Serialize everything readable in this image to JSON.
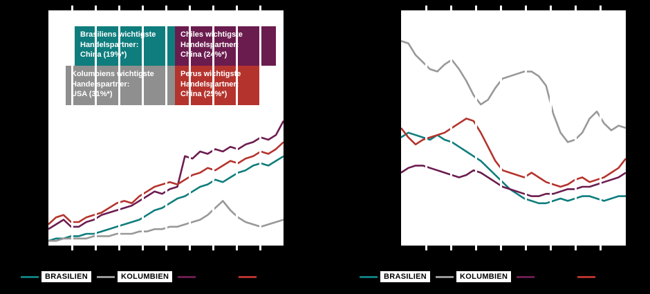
{
  "page": {
    "background": "#000000"
  },
  "colors": {
    "teal": "#0f7d7d",
    "gray": "#989898",
    "purple": "#6b1c4f",
    "red": "#b5332d",
    "plot_background": "#ffffff",
    "gridline": "#ffffff",
    "annotation_gray": "#8f8f8f",
    "legend_chip_bg": "#ffffff",
    "legend_text": "#000000"
  },
  "annotations": [
    {
      "key": "brasilien",
      "color": "teal",
      "text": "Brasiliens wichtigste\nHandelspartner:\nChina (19%*)"
    },
    {
      "key": "chile",
      "color": "purple",
      "text": "Chiles wichtigste\nHandelspartner:\nChina (24%*)"
    },
    {
      "key": "kolumbien",
      "color": "gray",
      "text": "Kolumbiens wichtigste\nHandelspartner:\nUSA (31%*)"
    },
    {
      "key": "peru",
      "color": "red",
      "text": "Perus wichtigste\nHandelspartner:\nChina (25%*)"
    }
  ],
  "legend": {
    "items": [
      {
        "label": "BRASILIEN",
        "color": "teal"
      },
      {
        "label": "KOLUMBIEN",
        "color": "gray"
      },
      {
        "label": "",
        "color": "purple"
      },
      {
        "label": "",
        "color": "red"
      }
    ]
  },
  "chart_data": [
    {
      "id": "left",
      "type": "line",
      "grid": {
        "vertical_lines": 9,
        "horizontal_lines": 0
      },
      "axes_note": "No axis tick labels visible in screenshot; values estimated as percent of plot height (0 = bottom, 100 = top).",
      "legend_position": "bottom",
      "x": [
        0,
        1,
        2,
        3,
        4,
        5,
        6,
        7,
        8,
        9,
        10,
        11,
        12,
        13,
        14,
        15,
        16,
        17,
        18,
        19,
        20,
        21,
        22,
        23,
        24,
        25,
        26,
        27,
        28,
        29,
        30,
        31
      ],
      "series": [
        {
          "name": "Brasilien",
          "color": "teal",
          "values": [
            2,
            3,
            3,
            4,
            4,
            5,
            5,
            6,
            7,
            8,
            9,
            10,
            11,
            13,
            15,
            16,
            18,
            20,
            21,
            23,
            25,
            26,
            28,
            27,
            29,
            31,
            32,
            34,
            35,
            34,
            36,
            38
          ]
        },
        {
          "name": "Kolumbien",
          "color": "gray",
          "values": [
            2,
            2,
            3,
            3,
            3,
            3,
            4,
            4,
            4,
            5,
            5,
            5,
            6,
            6,
            7,
            7,
            8,
            8,
            9,
            10,
            11,
            13,
            16,
            19,
            15,
            12,
            10,
            9,
            8,
            9,
            10,
            11
          ]
        },
        {
          "name": "Chile",
          "color": "purple",
          "values": [
            7,
            9,
            11,
            8,
            8,
            10,
            11,
            13,
            14,
            15,
            16,
            17,
            19,
            21,
            23,
            22,
            24,
            25,
            38,
            37,
            40,
            39,
            41,
            40,
            42,
            41,
            43,
            44,
            46,
            45,
            47,
            53
          ]
        },
        {
          "name": "Peru",
          "color": "red",
          "values": [
            9,
            12,
            13,
            10,
            10,
            12,
            13,
            14,
            16,
            18,
            19,
            18,
            21,
            23,
            25,
            26,
            27,
            26,
            28,
            30,
            31,
            33,
            32,
            34,
            36,
            35,
            37,
            38,
            40,
            39,
            41,
            44
          ]
        }
      ]
    },
    {
      "id": "right",
      "type": "line",
      "grid": {
        "vertical_lines": 8,
        "horizontal_lines": 0
      },
      "axes_note": "No axis tick labels visible in screenshot; values estimated as percent of plot height (0 = bottom, 100 = top).",
      "legend_position": "bottom",
      "x": [
        0,
        1,
        2,
        3,
        4,
        5,
        6,
        7,
        8,
        9,
        10,
        11,
        12,
        13,
        14,
        15,
        16,
        17,
        18,
        19,
        20,
        21,
        22,
        23,
        24,
        25,
        26,
        27,
        28,
        29,
        30,
        31
      ],
      "series": [
        {
          "name": "Brasilien",
          "color": "teal",
          "values": [
            46,
            48,
            47,
            46,
            45,
            47,
            45,
            44,
            42,
            40,
            38,
            36,
            33,
            30,
            27,
            24,
            22,
            20,
            19,
            18,
            18,
            19,
            20,
            19,
            20,
            21,
            21,
            20,
            19,
            20,
            21,
            21
          ]
        },
        {
          "name": "Kolumbien",
          "color": "gray",
          "values": [
            87,
            86,
            81,
            78,
            75,
            74,
            77,
            79,
            75,
            70,
            64,
            60,
            62,
            67,
            71,
            72,
            73,
            74,
            74,
            72,
            68,
            56,
            48,
            44,
            45,
            48,
            54,
            57,
            52,
            49,
            51,
            50
          ]
        },
        {
          "name": "Chile",
          "color": "purple",
          "values": [
            31,
            33,
            34,
            34,
            33,
            32,
            31,
            30,
            29,
            30,
            32,
            31,
            29,
            27,
            25,
            24,
            23,
            22,
            21,
            21,
            22,
            22,
            23,
            24,
            24,
            25,
            25,
            26,
            27,
            28,
            29,
            31
          ]
        },
        {
          "name": "Peru",
          "color": "red",
          "values": [
            50,
            46,
            43,
            45,
            46,
            47,
            48,
            50,
            52,
            54,
            53,
            48,
            42,
            36,
            32,
            31,
            30,
            29,
            31,
            29,
            27,
            26,
            25,
            26,
            28,
            29,
            27,
            28,
            29,
            31,
            33,
            37
          ]
        }
      ]
    }
  ]
}
